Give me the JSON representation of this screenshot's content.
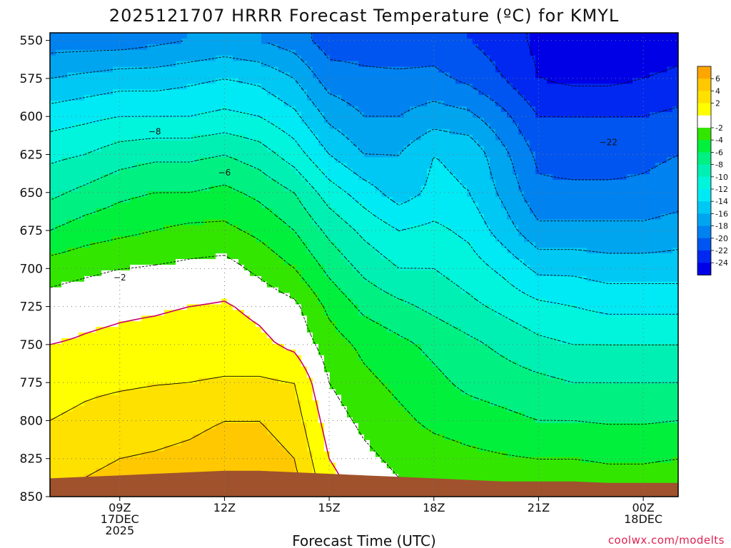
{
  "chart_data": {
    "type": "heatmap",
    "title": "2025121707 HRRR Forecast Temperature (ºC) for KMYL",
    "xlabel": "Forecast Time (UTC)",
    "ylabel": "",
    "x_hours": [
      7,
      8,
      9,
      10,
      11,
      12,
      13,
      14,
      15,
      16,
      17,
      18,
      19,
      20,
      21,
      22,
      23,
      24,
      25
    ],
    "x_range": [
      7,
      25
    ],
    "x_ticks": [
      {
        "hour": 9,
        "lines": [
          "09Z",
          "17DEC",
          "2025"
        ]
      },
      {
        "hour": 12,
        "lines": [
          "12Z"
        ]
      },
      {
        "hour": 15,
        "lines": [
          "15Z"
        ]
      },
      {
        "hour": 18,
        "lines": [
          "18Z"
        ]
      },
      {
        "hour": 21,
        "lines": [
          "21Z"
        ]
      },
      {
        "hour": 24,
        "lines": [
          "00Z",
          "18DEC"
        ]
      }
    ],
    "y_range_hpa": [
      850,
      545
    ],
    "y_ticks": [
      "550",
      "575",
      "600",
      "625",
      "650",
      "675",
      "700",
      "725",
      "750",
      "775",
      "800",
      "825",
      "850"
    ],
    "contour_interval": 2,
    "colorbar": {
      "labels": [
        "6",
        "4",
        "2",
        "-2",
        "-4",
        "-6",
        "-8",
        "-10",
        "-12",
        "-14",
        "-16",
        "-18",
        "-20",
        "-22",
        "-24"
      ],
      "bands": [
        {
          "lo": 6,
          "hi": 8,
          "color": "#ffa500"
        },
        {
          "lo": 4,
          "hi": 6,
          "color": "#ffc800"
        },
        {
          "lo": 2,
          "hi": 4,
          "color": "#ffe100"
        },
        {
          "lo": 0,
          "hi": 2,
          "color": "#ffff00"
        },
        {
          "lo": -2,
          "hi": 0,
          "color": "#ffffff"
        },
        {
          "lo": -4,
          "hi": -2,
          "color": "#32e600"
        },
        {
          "lo": -6,
          "hi": -4,
          "color": "#00f03c"
        },
        {
          "lo": -8,
          "hi": -6,
          "color": "#00f082"
        },
        {
          "lo": -10,
          "hi": -8,
          "color": "#00f0b4"
        },
        {
          "lo": -12,
          "hi": -10,
          "color": "#00f5dc"
        },
        {
          "lo": -14,
          "hi": -12,
          "color": "#00eaf5"
        },
        {
          "lo": -16,
          "hi": -14,
          "color": "#00c8f5"
        },
        {
          "lo": -18,
          "hi": -16,
          "color": "#00a5f0"
        },
        {
          "lo": -20,
          "hi": -18,
          "color": "#0082f0"
        },
        {
          "lo": -22,
          "hi": -20,
          "color": "#0055f0"
        },
        {
          "lo": -24,
          "hi": -22,
          "color": "#0028f0"
        },
        {
          "lo": -26,
          "hi": -24,
          "color": "#0000e6"
        }
      ]
    },
    "contour_labels": [
      {
        "text": "−8",
        "hour": 10.0,
        "hpa": 610
      },
      {
        "text": "−6",
        "hour": 12.0,
        "hpa": 637
      },
      {
        "text": "−2",
        "hour": 9.0,
        "hpa": 706
      },
      {
        "text": "−22",
        "hour": 23.0,
        "hpa": 617
      }
    ],
    "surface_hpa": [
      838,
      837,
      836,
      835,
      834,
      833,
      833,
      834,
      835,
      836,
      837,
      838,
      839,
      840,
      840,
      840,
      841,
      841,
      841
    ],
    "temperature_levels_hpa": [
      550,
      575,
      600,
      625,
      650,
      675,
      700,
      725,
      750,
      775,
      800,
      825,
      850
    ],
    "temperature_celsius": [
      [
        -19.0,
        -19.0,
        -19.0,
        -18.5,
        -18.0,
        -17.5,
        -18.0,
        -19.0,
        -21.0,
        -21.0,
        -21.5,
        -21.0,
        -22.0,
        -23.0,
        -24.5,
        -25.5,
        -26.0,
        -25.5,
        -25.0
      ],
      [
        -16.0,
        -15.5,
        -15.0,
        -15.0,
        -14.5,
        -14.0,
        -14.5,
        -16.0,
        -19.0,
        -19.5,
        -19.5,
        -19.5,
        -20.5,
        -22.0,
        -24.0,
        -24.5,
        -24.5,
        -24.0,
        -23.5
      ],
      [
        -13.0,
        -12.5,
        -12.0,
        -12.0,
        -12.0,
        -11.5,
        -12.0,
        -13.5,
        -16.5,
        -18.0,
        -18.0,
        -17.0,
        -17.5,
        -19.5,
        -22.0,
        -22.0,
        -22.0,
        -22.0,
        -21.5
      ],
      [
        -10.5,
        -10.0,
        -9.0,
        -8.5,
        -8.5,
        -8.0,
        -9.0,
        -11.0,
        -14.0,
        -16.0,
        -16.0,
        -14.0,
        -14.5,
        -17.5,
        -20.5,
        -21.0,
        -21.0,
        -20.5,
        -20.0
      ],
      [
        -8.5,
        -7.5,
        -6.5,
        -6.0,
        -6.0,
        -5.5,
        -6.5,
        -8.0,
        -11.0,
        -13.0,
        -15.0,
        -13.5,
        -14.0,
        -16.5,
        -19.5,
        -19.5,
        -19.5,
        -19.5,
        -19.0
      ],
      [
        -6.0,
        -5.0,
        -4.5,
        -4.0,
        -3.5,
        -3.5,
        -4.5,
        -6.0,
        -8.5,
        -10.5,
        -12.0,
        -11.5,
        -12.5,
        -15.0,
        -17.5,
        -17.5,
        -17.5,
        -17.5,
        -17.0
      ],
      [
        -3.0,
        -2.5,
        -2.0,
        -1.8,
        -1.5,
        -1.2,
        -2.5,
        -4.0,
        -6.5,
        -8.5,
        -10.0,
        -10.0,
        -11.0,
        -12.5,
        -14.5,
        -14.5,
        -15.0,
        -15.0,
        -15.0
      ],
      [
        -1.0,
        -0.5,
        -0.3,
        -0.2,
        0.0,
        0.2,
        -0.5,
        -1.5,
        -4.5,
        -6.5,
        -7.5,
        -8.5,
        -9.5,
        -10.5,
        -11.5,
        -12.0,
        -12.5,
        -12.5,
        -12.5
      ],
      [
        0.0,
        0.2,
        0.4,
        0.6,
        0.8,
        1.0,
        0.5,
        -0.5,
        -3.0,
        -4.5,
        -5.5,
        -6.5,
        -7.5,
        -8.5,
        -9.5,
        -10.0,
        -10.0,
        -10.0,
        -10.0
      ],
      [
        1.0,
        1.5,
        1.7,
        1.9,
        2.0,
        2.2,
        2.3,
        2.0,
        -2.0,
        -3.5,
        -4.5,
        -5.5,
        -6.5,
        -7.0,
        -7.5,
        -8.0,
        -8.0,
        -8.0,
        -8.0
      ],
      [
        2.0,
        2.5,
        3.0,
        3.2,
        3.5,
        4.0,
        4.0,
        3.0,
        -1.0,
        -2.5,
        -3.5,
        -4.5,
        -5.0,
        -5.5,
        -6.0,
        -6.0,
        -6.2,
        -6.2,
        -6.0
      ],
      [
        3.0,
        3.5,
        4.0,
        4.2,
        4.5,
        5.0,
        5.0,
        4.0,
        0.0,
        -1.5,
        -2.5,
        -3.0,
        -3.5,
        -3.8,
        -4.0,
        -4.0,
        -4.2,
        -4.2,
        -4.0
      ],
      [
        4.0,
        4.5,
        5.0,
        5.2,
        5.5,
        6.0,
        6.0,
        5.0,
        1.0,
        -0.5,
        -1.5,
        -2.0,
        -2.3,
        -2.5,
        -2.5,
        -2.5,
        -2.8,
        -2.8,
        -2.5
      ]
    ]
  },
  "credit": "coolwx.com/modelts",
  "colors": {
    "ground": "#a0522d",
    "freezing_line": "#c8006e",
    "contour_line": "#000000",
    "grid": "#777777"
  }
}
